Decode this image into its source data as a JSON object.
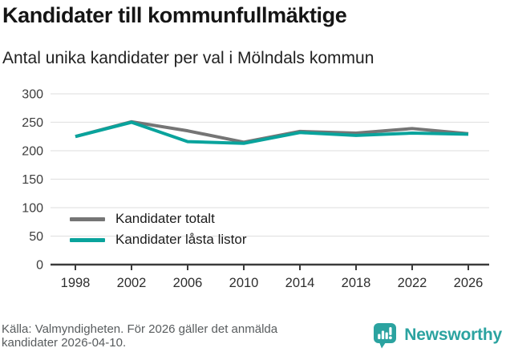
{
  "header": {
    "title": "Kandidater till kommunfullmäktige",
    "subtitle": "Antal unika kandidater per val i Mölndals kommun"
  },
  "chart_data": {
    "type": "line",
    "categories": [
      "1998",
      "2002",
      "2006",
      "2010",
      "2014",
      "2018",
      "2022",
      "2026"
    ],
    "series": [
      {
        "name": "Kandidater totalt",
        "color": "#757575",
        "values": [
          225,
          251,
          235,
          215,
          234,
          231,
          239,
          230
        ]
      },
      {
        "name": "Kandidater låsta listor",
        "color": "#09a39c",
        "values": [
          225,
          250,
          216,
          213,
          232,
          227,
          231,
          229
        ]
      }
    ],
    "title": "Kandidater till kommunfullmäktige",
    "subtitle": "Antal unika kandidater per val i Mölndals kommun",
    "xlabel": "",
    "ylabel": "",
    "ylim": [
      0,
      300
    ],
    "yticks": [
      0,
      50,
      100,
      150,
      200,
      250,
      300
    ],
    "grid": true,
    "gridline_color": "#e3e3e3",
    "axis_color": "#3b3b3b",
    "legend_position": "inside-bottom-left"
  },
  "footer": {
    "source": "Källa: Valmyndigheten. För 2026 gäller det anmälda kandidater 2026-04-10.",
    "brand": "Newsworthy",
    "brand_color": "#2ba3a0"
  }
}
